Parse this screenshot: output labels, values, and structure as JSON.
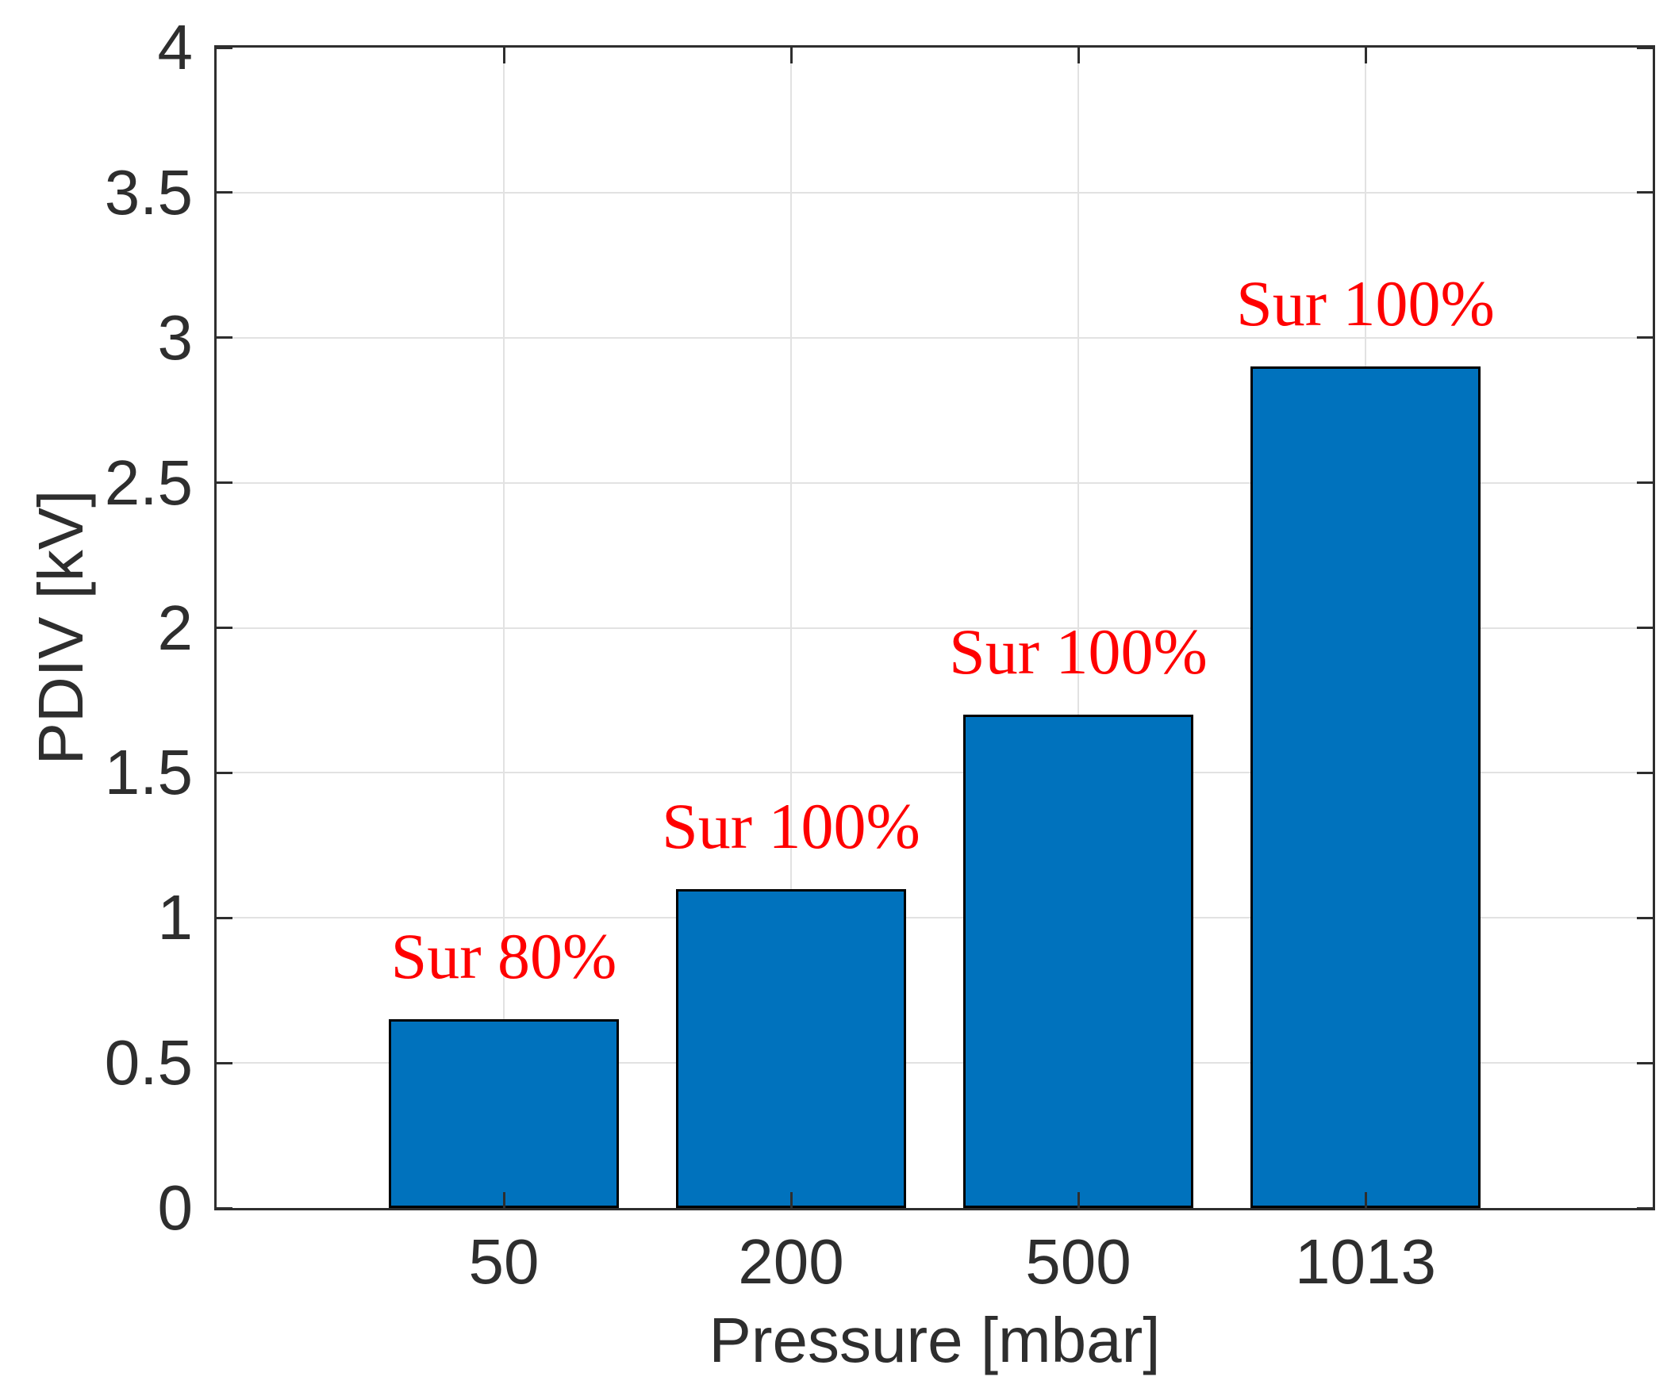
{
  "figure": {
    "background": "#ffffff"
  },
  "chart_data": {
    "type": "bar",
    "title": "",
    "xlabel": "Pressure [mbar]",
    "ylabel": "PDIV [kV]",
    "categories": [
      "50",
      "200",
      "500",
      "1013"
    ],
    "values": [
      0.65,
      1.1,
      1.7,
      2.9
    ],
    "bar_labels": [
      "Sur 80%",
      "Sur 100%",
      "Sur 100%",
      "Sur 100%"
    ],
    "ylim": [
      0,
      4
    ],
    "yticks": [
      0,
      0.5,
      1,
      1.5,
      2,
      2.5,
      3,
      3.5,
      4
    ],
    "ytick_labels": [
      "0",
      "0.5",
      "1",
      "1.5",
      "2",
      "2.5",
      "3",
      "3.5",
      "4"
    ],
    "grid": "on",
    "legend": "none",
    "bar_width_fraction": 0.8,
    "bar_color": "#0072BD",
    "bar_edge_color": "#000000",
    "bar_label_color": "#ff0000",
    "axis_color": "#2e2e2e",
    "grid_color": "#e2e2e2"
  }
}
